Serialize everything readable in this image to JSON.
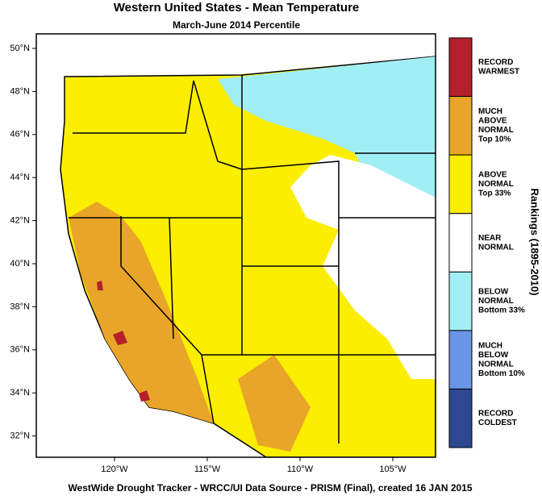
{
  "title": "Western United States - Mean Temperature",
  "subtitle": "March-June 2014 Percentile",
  "lat_labels": [
    "50°N",
    "48°N",
    "46°N",
    "44°N",
    "42°N",
    "40°N",
    "38°N",
    "36°N",
    "34°N",
    "32°N"
  ],
  "lon_labels": [
    "120°W",
    "115°W",
    "110°W",
    "105°W"
  ],
  "legend": {
    "title": "Rankings (1895-2010)",
    "entries": [
      {
        "lines": [
          "RECORD",
          "WARMEST"
        ],
        "color": "#b5202a"
      },
      {
        "lines": [
          "MUCH",
          "ABOVE",
          "NORMAL",
          "Top 10%"
        ],
        "color": "#e9a527"
      },
      {
        "lines": [
          "ABOVE",
          "NORMAL",
          "Top 33%"
        ],
        "color": "#fbee00"
      },
      {
        "lines": [
          "NEAR",
          "NORMAL"
        ],
        "color": "#ffffff"
      },
      {
        "lines": [
          "BELOW",
          "NORMAL",
          "Bottom 33%"
        ],
        "color": "#a2eef5"
      },
      {
        "lines": [
          "MUCH",
          "BELOW",
          "NORMAL",
          "Bottom 10%"
        ],
        "color": "#6a94e6"
      },
      {
        "lines": [
          "RECORD",
          "COLDEST"
        ],
        "color": "#2c4893"
      }
    ]
  },
  "footer": "WestWide Drought Tracker - WRCC/UI  Data Source - PRISM (Final), created 16 JAN 2015"
}
